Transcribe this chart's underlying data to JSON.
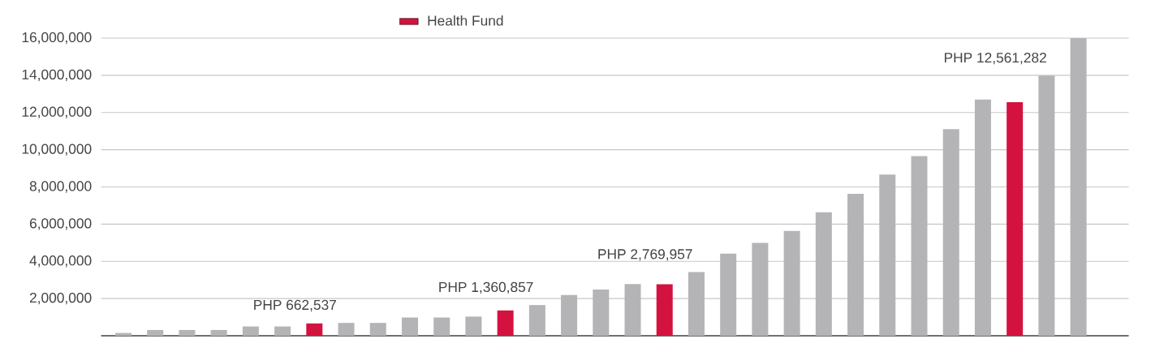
{
  "chart_data": {
    "type": "bar",
    "categories": [
      null,
      null,
      null,
      null,
      null,
      null,
      null,
      null,
      null,
      null,
      null,
      null,
      null,
      null,
      null,
      null,
      null,
      null,
      null,
      null,
      null,
      null,
      null,
      null,
      null,
      null,
      null,
      null,
      null,
      null,
      null
    ],
    "series": [
      {
        "color": "#b4b4b6",
        "values": [
          150000,
          310000,
          310000,
          310000,
          500000,
          500000,
          null,
          690000,
          690000,
          980000,
          980000,
          1030000,
          null,
          1650000,
          2190000,
          2490000,
          2780000,
          null,
          3420000,
          4410000,
          4990000,
          5630000,
          6640000,
          7630000,
          8670000,
          9660000,
          11110000,
          12700000,
          null,
          13980000,
          16000000
        ]
      },
      {
        "name": "Health Fund",
        "color": "#d4123f",
        "values": [
          null,
          null,
          null,
          null,
          null,
          null,
          662537,
          null,
          null,
          null,
          null,
          null,
          1360857,
          null,
          null,
          null,
          null,
          2769957,
          null,
          null,
          null,
          null,
          null,
          null,
          null,
          null,
          null,
          null,
          12561282,
          null,
          null
        ],
        "value_labels": [
          null,
          null,
          null,
          null,
          null,
          null,
          "PHP 662,537",
          null,
          null,
          null,
          null,
          null,
          "PHP 1,360,857",
          null,
          null,
          null,
          null,
          "PHP 2,769,957",
          null,
          null,
          null,
          null,
          null,
          null,
          null,
          null,
          null,
          null,
          "PHP 12,561,282",
          null,
          null
        ]
      }
    ],
    "ylim": [
      0,
      16000000
    ],
    "yticks": [
      {
        "value": 2000000,
        "label": "2,000,000"
      },
      {
        "value": 4000000,
        "label": "4,000,000"
      },
      {
        "value": 6000000,
        "label": "6,000,000"
      },
      {
        "value": 8000000,
        "label": "8,000,000"
      },
      {
        "value": 10000000,
        "label": "10,000,000"
      },
      {
        "value": 12000000,
        "label": "12,000,000"
      },
      {
        "value": 14000000,
        "label": "14,000,000"
      },
      {
        "value": 16000000,
        "label": "16,000,000"
      }
    ],
    "stacked": true,
    "grid": "y",
    "legend": "top"
  }
}
